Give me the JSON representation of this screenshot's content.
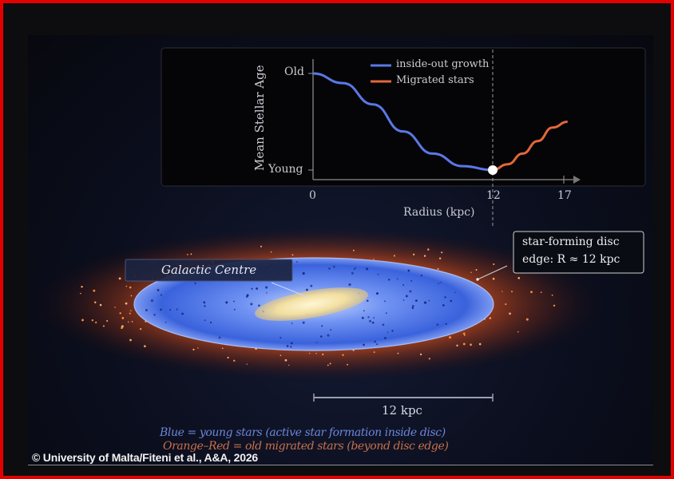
{
  "chart": {
    "ylabel": "Mean Stellar Age",
    "xlabel": "Radius (kpc)",
    "y_ticks": [
      "Old",
      "Young"
    ],
    "x_ticks": [
      "0",
      "12",
      "17"
    ],
    "legend": [
      {
        "label": "inside-out growth",
        "color": "#5a78e6"
      },
      {
        "label": "Migrated stars",
        "color": "#e0683a"
      }
    ]
  },
  "chart_data": {
    "type": "line",
    "xlabel": "Radius (kpc)",
    "ylabel": "Mean Stellar Age",
    "xlim": [
      0,
      17
    ],
    "y_scale": "qualitative (Young to Old)",
    "series": [
      {
        "name": "inside-out growth",
        "color": "#5a78e6",
        "x": [
          0,
          2,
          4,
          6,
          8,
          10,
          12
        ],
        "y": [
          1.0,
          0.9,
          0.68,
          0.4,
          0.17,
          0.04,
          0.0
        ]
      },
      {
        "name": "Migrated stars",
        "color": "#e0683a",
        "x": [
          12,
          13,
          14,
          15,
          16,
          17
        ],
        "y": [
          0.0,
          0.06,
          0.17,
          0.3,
          0.44,
          0.5
        ]
      }
    ],
    "marker": {
      "x": 12,
      "y": 0.0
    },
    "vline_x": 12
  },
  "galaxy": {
    "centre_label": "Galactic Centre",
    "edge_callout": [
      "star-forming disc",
      "edge: R ≈ 12 kpc"
    ],
    "scale_bar_label": "12 kpc",
    "legend_blue": "Blue = young stars (active star formation inside disc)",
    "legend_orange": "Orange–Red = old migrated stars (beyond disc edge)",
    "colors": {
      "blue": "#3a66e0",
      "orange": "#e0683a",
      "bulge": "#f2dfa0"
    }
  },
  "credit": "© University of Malta/Fiteni et al., A&A, 2026"
}
